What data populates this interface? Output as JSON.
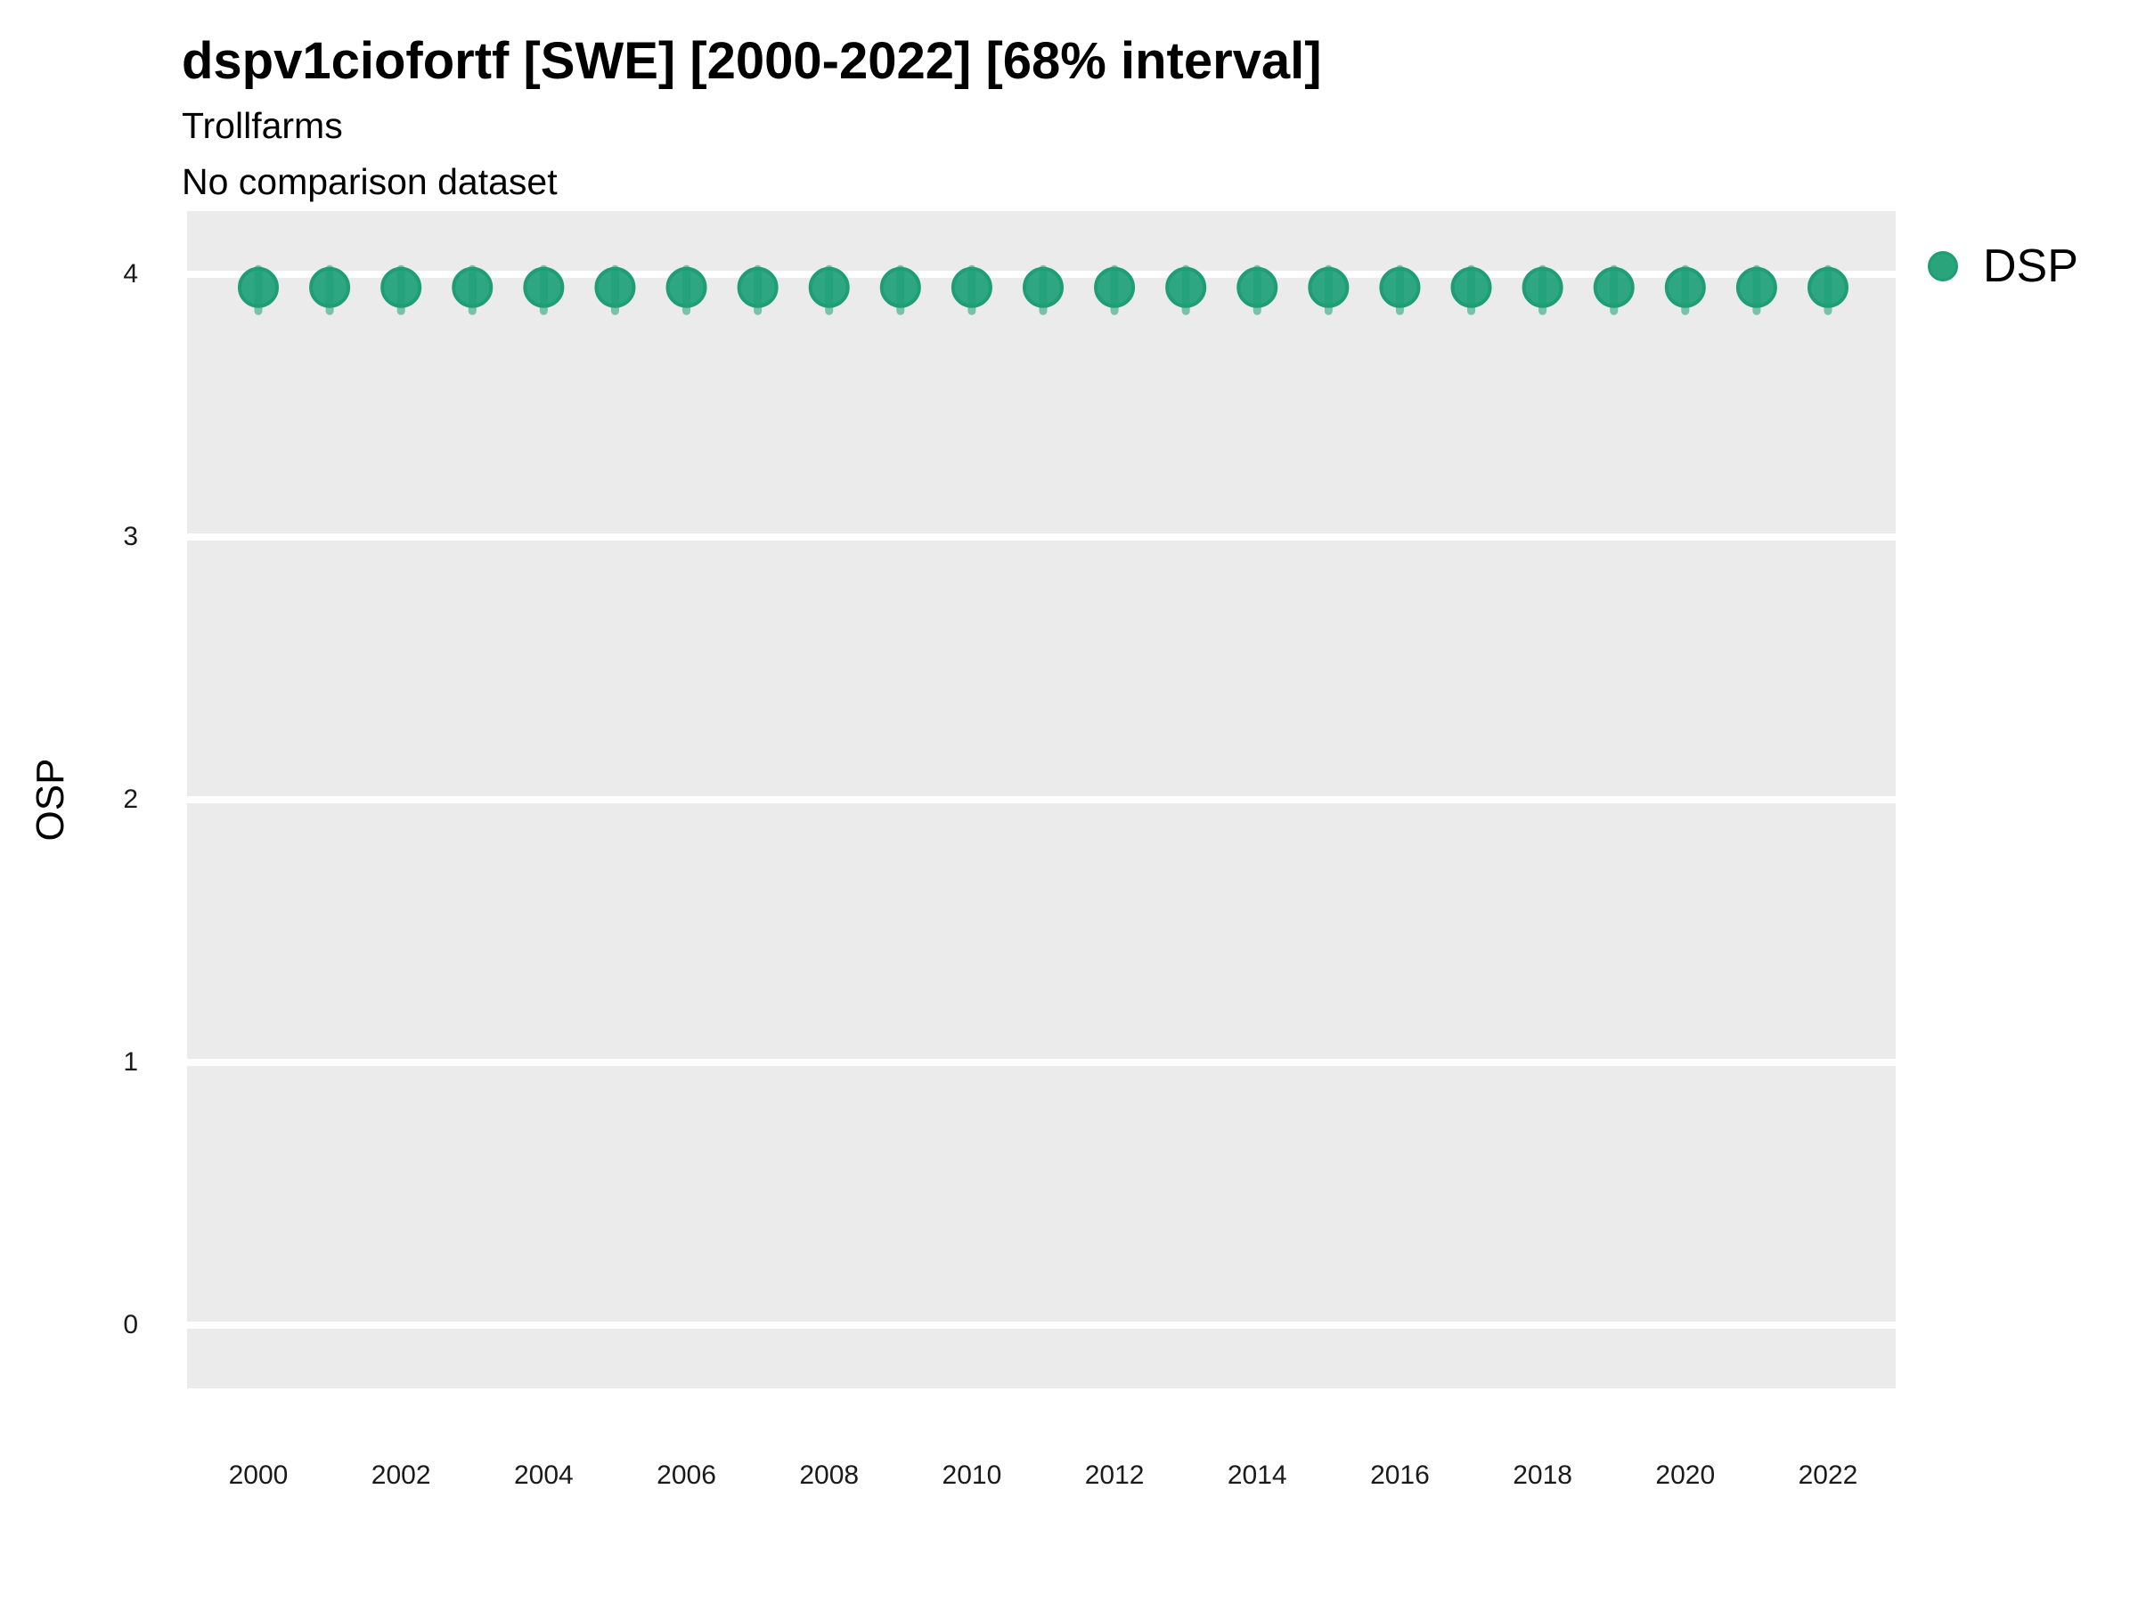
{
  "colors": {
    "accent_green": "#1b9e77",
    "point_stroke": "#1f9e74",
    "panel_background": "#ebebeb",
    "gridline": "#ffffff",
    "text": "#000000"
  },
  "legend": {
    "position": "right",
    "items": [
      {
        "label": "DSP",
        "color": "#1b9e77",
        "shape": "circle"
      }
    ]
  },
  "chart_data": {
    "type": "scatter",
    "title": "dspv1ciofortf [SWE] [2000-2022] [68% interval]",
    "subtitle": "Trollfarms",
    "note": "No comparison dataset",
    "xlabel": "",
    "ylabel": "OSP",
    "interval_label": "68% interval",
    "x_ticks": [
      2000,
      2002,
      2004,
      2006,
      2008,
      2010,
      2012,
      2014,
      2016,
      2018,
      2020,
      2022
    ],
    "y_ticks": [
      0,
      1,
      2,
      3,
      4
    ],
    "xlim": [
      1999,
      2023.1
    ],
    "ylim": [
      -0.26,
      4.26
    ],
    "grid": "horizontal-major",
    "legend_position": "right-top",
    "series": [
      {
        "name": "DSP",
        "color": "#1b9e77",
        "x": [
          2000,
          2001,
          2002,
          2003,
          2004,
          2005,
          2006,
          2007,
          2008,
          2009,
          2010,
          2011,
          2012,
          2013,
          2014,
          2015,
          2016,
          2017,
          2018,
          2019,
          2020,
          2021,
          2022
        ],
        "y": [
          3.95,
          3.95,
          3.95,
          3.95,
          3.95,
          3.95,
          3.95,
          3.95,
          3.95,
          3.95,
          3.95,
          3.95,
          3.95,
          3.95,
          3.95,
          3.95,
          3.95,
          3.95,
          3.95,
          3.95,
          3.95,
          3.95,
          3.95
        ],
        "y_low": [
          3.86,
          3.86,
          3.86,
          3.86,
          3.86,
          3.86,
          3.86,
          3.86,
          3.86,
          3.86,
          3.86,
          3.86,
          3.86,
          3.86,
          3.86,
          3.86,
          3.86,
          3.86,
          3.86,
          3.86,
          3.86,
          3.86,
          3.86
        ],
        "y_high": [
          4.02,
          4.02,
          4.02,
          4.02,
          4.02,
          4.02,
          4.02,
          4.02,
          4.02,
          4.02,
          4.02,
          4.02,
          4.02,
          4.02,
          4.02,
          4.02,
          4.02,
          4.02,
          4.02,
          4.02,
          4.02,
          4.02,
          4.02
        ]
      }
    ]
  }
}
